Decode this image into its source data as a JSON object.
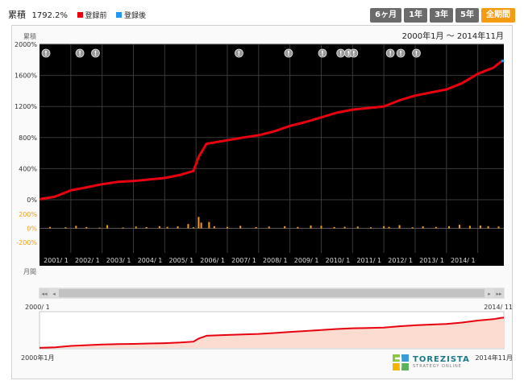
{
  "header": {
    "label": "累積",
    "value": "1792.2%",
    "legend_before": "登録前",
    "legend_after": "登録後"
  },
  "tabs": [
    {
      "label": "6ヶ月",
      "active": false
    },
    {
      "label": "1年",
      "active": false
    },
    {
      "label": "3年",
      "active": false
    },
    {
      "label": "5年",
      "active": false
    },
    {
      "label": "全期間",
      "active": true
    }
  ],
  "colors": {
    "before": "#e8000f",
    "after": "#2196f3",
    "monthly": "#f39c12",
    "accent": "#f39c12",
    "plot_bg": "#000000",
    "navigator_fill": "#fcdcd0"
  },
  "chart": {
    "date_range": "2000年1月 〜 2014年11月",
    "cumulative_label": "累積",
    "monthly_label": "月間",
    "ticks_main": [
      "2000%",
      "1600%",
      "1200%",
      "800%",
      "400%",
      "0%"
    ],
    "ticks_monthly": [
      "200%",
      "0%",
      "-200%"
    ],
    "x_labels": [
      "2001/ 1",
      "2002/ 1",
      "2003/ 1",
      "2004/ 1",
      "2005/ 1",
      "2006/ 1",
      "2007/ 1",
      "2008/ 1",
      "2009/ 1",
      "2010/ 1",
      "2011/ 1",
      "2012/ 1",
      "2013/ 1",
      "2014/ 1"
    ]
  },
  "navigator": {
    "start_top": "2000/ 1",
    "end_top": "2014/ 11",
    "start_bottom": "2000年1月",
    "end_bottom": "2014年11月"
  },
  "logo": {
    "name": "TOREZISTA",
    "sub": "STRATEGY ONLINE"
  },
  "chart_data": {
    "type": "line",
    "x_start": "2000-01",
    "x_end": "2014-11",
    "ylim": [
      0,
      2000
    ],
    "monthly_ylim": [
      -300,
      300
    ],
    "series": [
      {
        "name": "登録前",
        "x": [
          "2000-01",
          "2000-07",
          "2001-01",
          "2001-07",
          "2002-01",
          "2002-07",
          "2003-01",
          "2003-07",
          "2004-01",
          "2004-07",
          "2004-12",
          "2005-02",
          "2005-05",
          "2005-12",
          "2006-07",
          "2007-01",
          "2007-07",
          "2008-01",
          "2008-07",
          "2009-01",
          "2009-07",
          "2010-01",
          "2010-07",
          "2011-01",
          "2011-07",
          "2012-01",
          "2012-07",
          "2013-01",
          "2013-07",
          "2014-01",
          "2014-07",
          "2014-10"
        ],
        "values": [
          5,
          40,
          120,
          160,
          200,
          230,
          240,
          260,
          280,
          320,
          370,
          550,
          720,
          760,
          800,
          830,
          880,
          950,
          1000,
          1060,
          1120,
          1160,
          1180,
          1200,
          1280,
          1340,
          1380,
          1420,
          1500,
          1620,
          1700,
          1780
        ]
      },
      {
        "name": "登録後",
        "x": [
          "2014-10",
          "2014-11"
        ],
        "values": [
          1780,
          1792.2
        ]
      }
    ],
    "monthly_series": {
      "x": [
        "2000-05",
        "2000-11",
        "2001-03",
        "2001-07",
        "2001-12",
        "2002-03",
        "2002-09",
        "2003-02",
        "2003-06",
        "2003-11",
        "2004-02",
        "2004-06",
        "2004-10",
        "2004-12",
        "2005-02",
        "2005-03",
        "2005-06",
        "2005-08",
        "2006-01",
        "2006-06",
        "2006-12",
        "2007-05",
        "2007-11",
        "2008-04",
        "2008-09",
        "2009-01",
        "2009-06",
        "2009-10",
        "2010-03",
        "2010-08",
        "2011-01",
        "2011-03",
        "2011-07",
        "2011-12",
        "2012-04",
        "2012-09",
        "2013-02",
        "2013-06",
        "2013-10",
        "2014-02",
        "2014-05",
        "2014-09"
      ],
      "values": [
        20,
        15,
        35,
        18,
        10,
        45,
        12,
        25,
        18,
        30,
        20,
        28,
        60,
        15,
        160,
        80,
        90,
        30,
        20,
        35,
        18,
        25,
        30,
        20,
        40,
        35,
        18,
        22,
        25,
        15,
        30,
        20,
        45,
        15,
        28,
        20,
        30,
        50,
        35,
        40,
        30,
        25
      ]
    },
    "events": [
      "2000-01",
      "2001-02",
      "2001-08",
      "2006-03",
      "2007-10",
      "2008-11",
      "2009-06",
      "2009-09",
      "2009-11",
      "2011-01",
      "2011-05",
      "2011-11"
    ],
    "grid": true,
    "legend": "top-left"
  }
}
